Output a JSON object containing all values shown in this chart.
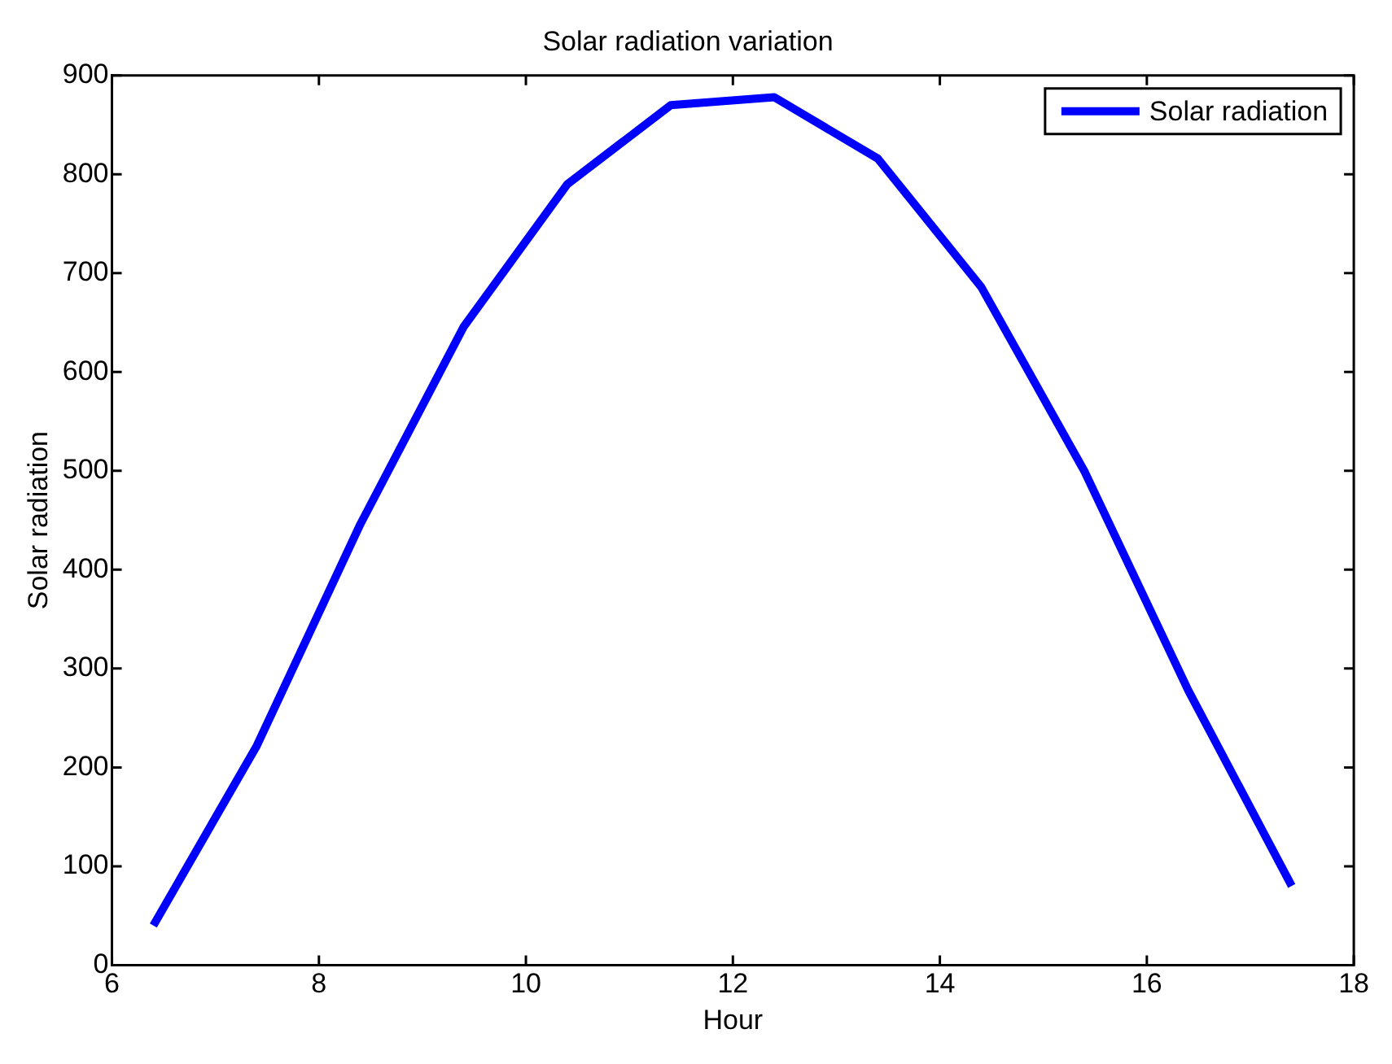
{
  "chart_data": {
    "type": "line",
    "title": "Solar radiation variation",
    "xlabel": "Hour",
    "ylabel": "Solar radiation",
    "x": [
      6.4,
      7.4,
      8.4,
      9.4,
      10.4,
      11.4,
      12.4,
      13.4,
      14.4,
      15.4,
      16.4,
      17.4
    ],
    "series": [
      {
        "name": "Solar radiation",
        "color": "#0000ff",
        "values": [
          40,
          222,
          446,
          646,
          790,
          870,
          878,
          816,
          686,
          499,
          278,
          80
        ]
      }
    ],
    "xlim": [
      6,
      18
    ],
    "xticks": [
      6,
      8,
      10,
      12,
      14,
      16,
      18
    ],
    "ylim": [
      0,
      900
    ],
    "yticks": [
      0,
      100,
      200,
      300,
      400,
      500,
      600,
      700,
      800,
      900
    ],
    "grid": false,
    "legend": "top right",
    "marker": "none",
    "line_style": "solid"
  }
}
